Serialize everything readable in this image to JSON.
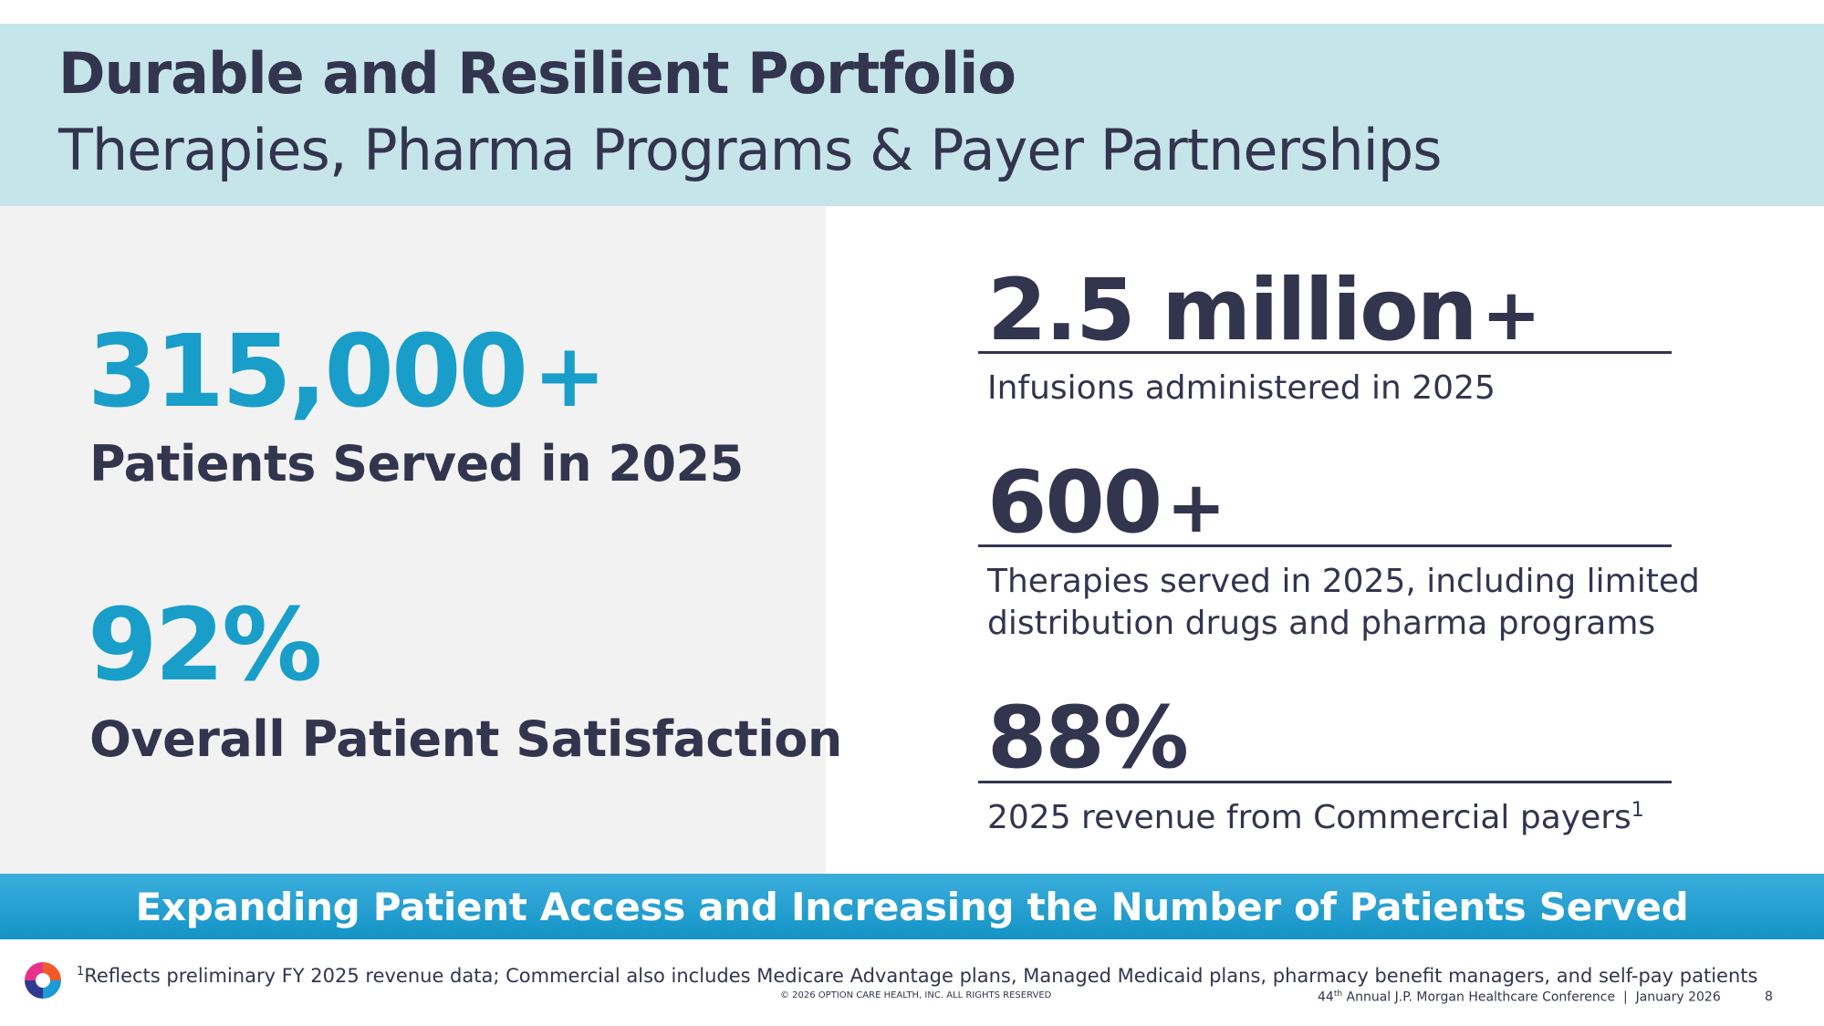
{
  "header": {
    "title": "Durable and Resilient Portfolio",
    "subtitle": "Therapies, Pharma Programs & Payer Partnerships"
  },
  "left_stats": [
    {
      "value": "315,000",
      "suffix": "+",
      "label": "Patients Served in 2025"
    },
    {
      "value": "92%",
      "suffix": "",
      "label": "Overall Patient Satisfaction"
    }
  ],
  "right_stats": [
    {
      "value": "2.5 million",
      "suffix": "+",
      "caption": "Infusions administered in 2025"
    },
    {
      "value": "600",
      "suffix": "+",
      "caption_line1": "Therapies served in 2025, including limited",
      "caption_line2": "distribution drugs and pharma programs"
    },
    {
      "value": "88%",
      "suffix": "",
      "caption": "2025 revenue from Commercial payers",
      "caption_sup": "1"
    }
  ],
  "banner": {
    "text": "Expanding Patient Access and Increasing the Number of Patients Served"
  },
  "footer": {
    "footnote_sup": "1",
    "footnote": "Reflects preliminary FY 2025 revenue data; Commercial also includes Medicare Advantage plans, Managed Medicaid plans, pharmacy benefit managers, and self-pay patients",
    "copyright": "© 2026 OPTION CARE HEALTH, INC. ALL RIGHTS RESERVED",
    "conference_num": "44",
    "conference_sup": "th",
    "conference_rest": " Annual J.P. Morgan Healthcare Conference  |  January 2026",
    "page_number": "8"
  },
  "colors": {
    "header_bg": "#c6e5ea",
    "panel_bg": "#f2f2f3",
    "accent_blue": "#189ec9",
    "navy": "#33354f",
    "banner_top": "#3aaedb",
    "banner_bottom": "#1493c7"
  },
  "icons": {
    "logo": "option-care-logo-icon"
  }
}
